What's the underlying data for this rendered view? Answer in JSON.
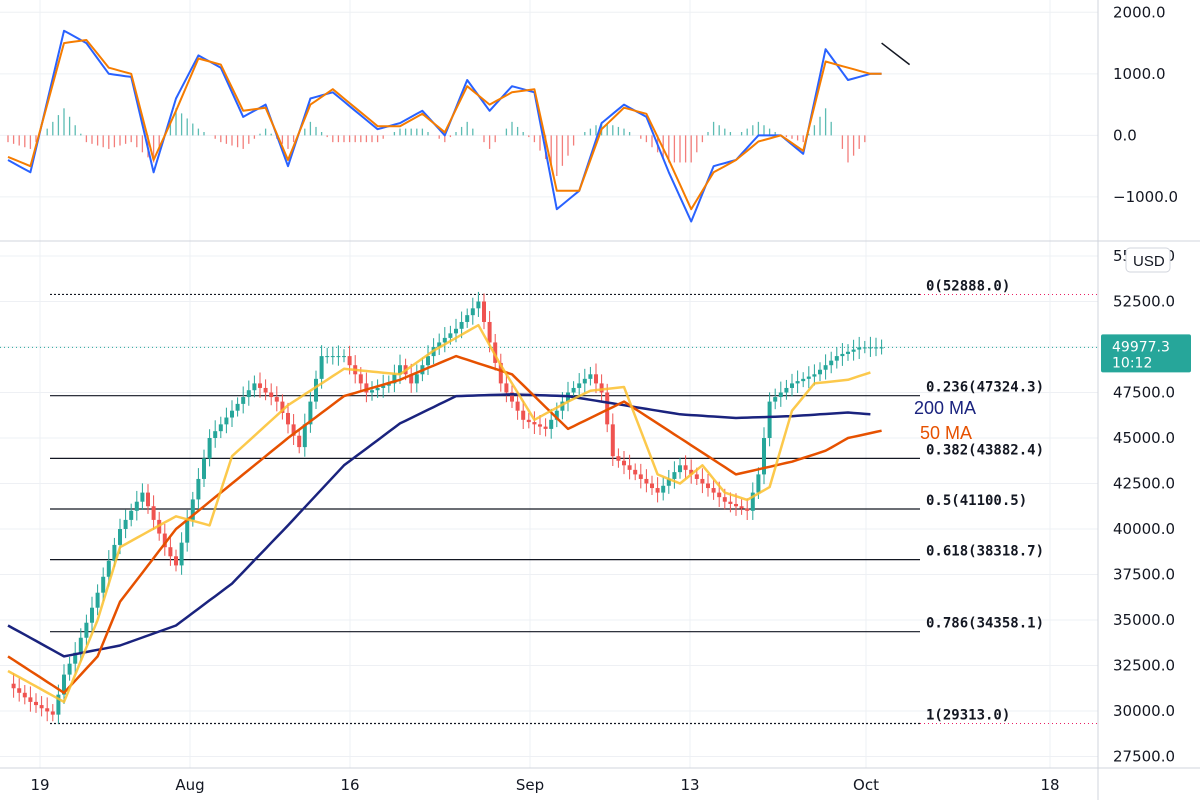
{
  "chart_data": [
    {
      "type": "line",
      "panel": "MACD oscillator",
      "y_ticks": [
        "2000.0",
        "1000.0",
        "0.0",
        "−1000.0"
      ],
      "y_tick_values": [
        2000,
        1000,
        0,
        -1000
      ],
      "ylim": [
        -1700,
        2200
      ],
      "series": [
        {
          "color": "#2962ff",
          "x": [
            0,
            2,
            5,
            7,
            9,
            11,
            13,
            15,
            17,
            19,
            21,
            23,
            25,
            27,
            29,
            31,
            33,
            35,
            37,
            39,
            41,
            43,
            45,
            47,
            49,
            51,
            53,
            55,
            57,
            59,
            61,
            63,
            65,
            67,
            69,
            71,
            73,
            75,
            77
          ],
          "values": [
            -400,
            -600,
            1700,
            1500,
            1000,
            950,
            -600,
            600,
            1300,
            1100,
            300,
            500,
            -500,
            600,
            700,
            400,
            100,
            200,
            400,
            0,
            900,
            400,
            800,
            700,
            -1200,
            -900,
            200,
            500,
            300,
            -600,
            -1400,
            -500,
            -400,
            0,
            0,
            -300,
            1400,
            900,
            1000
          ]
        },
        {
          "color": "#f57c00",
          "x": [
            0,
            2,
            5,
            7,
            9,
            11,
            13,
            15,
            17,
            19,
            21,
            23,
            25,
            27,
            29,
            31,
            33,
            35,
            37,
            39,
            41,
            43,
            45,
            47,
            49,
            51,
            53,
            55,
            57,
            59,
            61,
            63,
            65,
            67,
            69,
            71,
            73,
            75,
            77
          ],
          "values": [
            -350,
            -500,
            1500,
            1550,
            1100,
            1000,
            -400,
            400,
            1250,
            1150,
            400,
            450,
            -400,
            500,
            750,
            450,
            150,
            150,
            350,
            50,
            800,
            500,
            700,
            750,
            -900,
            -900,
            100,
            450,
            350,
            -400,
            -1200,
            -600,
            -400,
            -100,
            0,
            -250,
            1200,
            1100,
            1000
          ]
        }
      ],
      "histogram_colors": {
        "positive": "#26a69a",
        "negative": "#ef5350"
      }
    },
    {
      "type": "candlestick",
      "panel": "price",
      "currency_label": "USD",
      "x_ticks": [
        "19",
        "Aug",
        "16",
        "Sep",
        "13",
        "Oct",
        "18"
      ],
      "y_ticks": [
        "27500.0",
        "30000.0",
        "32500.0",
        "35000.0",
        "37500.0",
        "40000.0",
        "42500.0",
        "45000.0",
        "47500.0",
        "50000.0",
        "52500.0",
        "55000.0"
      ],
      "y_tick_values": [
        27500,
        30000,
        32500,
        35000,
        37500,
        40000,
        42500,
        45000,
        47500,
        50000,
        52500,
        55000
      ],
      "ylim": [
        26500,
        55200
      ],
      "last_price": "49977.3",
      "countdown": "10:12",
      "price_path": {
        "x": [
          0,
          2,
          4,
          5,
          6,
          8,
          10,
          12,
          14,
          15,
          16,
          18,
          20,
          22,
          24,
          26,
          28,
          30,
          32,
          34,
          35,
          36,
          38,
          40,
          42,
          44,
          46,
          48,
          50,
          52,
          53,
          54,
          56,
          58,
          60,
          62,
          64,
          66,
          67,
          68,
          70,
          72,
          74,
          76,
          77,
          78
        ],
        "close": [
          31500,
          30500,
          29800,
          32000,
          33200,
          36500,
          40000,
          42000,
          39000,
          38000,
          40500,
          45000,
          46500,
          48000,
          47000,
          44500,
          49500,
          49500,
          47500,
          48000,
          49000,
          48000,
          50000,
          51000,
          52500,
          48000,
          46000,
          45500,
          47500,
          48500,
          47500,
          44000,
          43000,
          42000,
          43500,
          42500,
          41500,
          41000,
          43000,
          47000,
          48000,
          48500,
          49500,
          49977.3,
          49977.3,
          49977.3
        ]
      },
      "moving_averages": [
        {
          "name": "200 MA",
          "color": "#1a237e",
          "x": [
            0,
            5,
            10,
            15,
            20,
            25,
            30,
            35,
            40,
            45,
            50,
            55,
            60,
            65,
            70,
            75,
            77
          ],
          "values": [
            34700,
            33000,
            33600,
            34700,
            37000,
            40200,
            43500,
            45800,
            47300,
            47400,
            47300,
            46800,
            46300,
            46100,
            46200,
            46400,
            46300
          ]
        },
        {
          "name": "50 MA",
          "color": "#e65100",
          "x": [
            0,
            5,
            8,
            10,
            15,
            20,
            25,
            30,
            35,
            40,
            45,
            50,
            55,
            60,
            65,
            70,
            73,
            75,
            78
          ],
          "values": [
            33000,
            31000,
            33000,
            36000,
            40000,
            42500,
            45000,
            47300,
            48200,
            49500,
            48500,
            45500,
            47000,
            45000,
            43000,
            43700,
            44300,
            45000,
            45400
          ]
        },
        {
          "color": "#fbc02d",
          "x": [
            0,
            5,
            8,
            10,
            15,
            18,
            20,
            25,
            30,
            35,
            38,
            40,
            42,
            44,
            47,
            50,
            52,
            55,
            58,
            60,
            62,
            64,
            66,
            68,
            70,
            72,
            75,
            77
          ],
          "values": [
            32200,
            30500,
            35000,
            39000,
            40700,
            40200,
            44000,
            46800,
            48800,
            48500,
            49800,
            50500,
            51200,
            49000,
            46000,
            47000,
            47600,
            47800,
            43000,
            42500,
            43500,
            42000,
            41600,
            42300,
            46500,
            48000,
            48200,
            48600
          ]
        }
      ],
      "fibonacci_levels": [
        {
          "label": "0(52888.0)",
          "value": 52888.0
        },
        {
          "label": "0.236(47324.3)",
          "value": 47324.3
        },
        {
          "label": "0.382(43882.4)",
          "value": 43882.4
        },
        {
          "label": "0.5(41100.5)",
          "value": 41100.5
        },
        {
          "label": "0.618(38318.7)",
          "value": 38318.7
        },
        {
          "label": "0.786(34358.1)",
          "value": 34358.1
        },
        {
          "label": "1(29313.0)",
          "value": 29313.0
        }
      ]
    }
  ]
}
